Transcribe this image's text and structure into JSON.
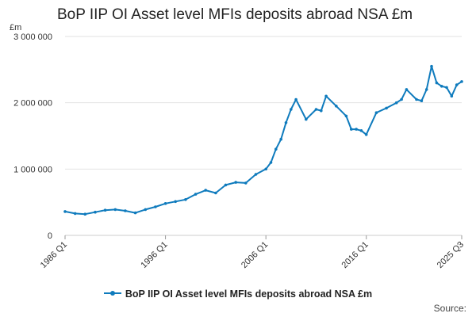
{
  "chart_data": {
    "type": "line",
    "title": "BoP IIP OI Asset level MFIs deposits abroad NSA £m",
    "ylabel": "£m",
    "ylim": [
      0,
      3000000
    ],
    "yticks": [
      0,
      1000000,
      2000000,
      3000000
    ],
    "ytick_labels": [
      "0",
      "1 000 000",
      "2 000 000",
      "3 000 000"
    ],
    "xtick_labels": [
      "1986 Q1",
      "1996 Q1",
      "2006 Q1",
      "2016 Q1",
      "2025 Q3"
    ],
    "grid": true,
    "legend_position": "bottom",
    "series": [
      {
        "name": "BoP IIP OI Asset level MFIs deposits abroad NSA £m",
        "color": "#0f7bbd",
        "x": [
          "1986 Q1",
          "1987 Q1",
          "1988 Q1",
          "1989 Q1",
          "1990 Q1",
          "1991 Q1",
          "1992 Q1",
          "1993 Q1",
          "1994 Q1",
          "1995 Q1",
          "1996 Q1",
          "1997 Q1",
          "1998 Q1",
          "1999 Q1",
          "2000 Q1",
          "2001 Q1",
          "2002 Q1",
          "2003 Q1",
          "2004 Q1",
          "2005 Q1",
          "2006 Q1",
          "2006 Q3",
          "2007 Q1",
          "2007 Q3",
          "2008 Q1",
          "2008 Q3",
          "2009 Q1",
          "2010 Q1",
          "2011 Q1",
          "2011 Q3",
          "2012 Q1",
          "2013 Q1",
          "2014 Q1",
          "2014 Q3",
          "2015 Q1",
          "2015 Q3",
          "2016 Q1",
          "2017 Q1",
          "2018 Q1",
          "2019 Q1",
          "2019 Q3",
          "2020 Q1",
          "2021 Q1",
          "2021 Q3",
          "2022 Q1",
          "2022 Q3",
          "2023 Q1",
          "2023 Q3",
          "2024 Q1",
          "2024 Q3",
          "2025 Q1",
          "2025 Q3"
        ],
        "values": [
          360000,
          330000,
          320000,
          350000,
          380000,
          390000,
          370000,
          340000,
          390000,
          430000,
          480000,
          510000,
          540000,
          620000,
          680000,
          640000,
          760000,
          800000,
          790000,
          920000,
          1000000,
          1100000,
          1300000,
          1450000,
          1700000,
          1900000,
          2050000,
          1750000,
          1900000,
          1880000,
          2100000,
          1950000,
          1800000,
          1600000,
          1600000,
          1580000,
          1520000,
          1850000,
          1920000,
          2000000,
          2050000,
          2200000,
          2050000,
          2030000,
          2200000,
          2550000,
          2300000,
          2250000,
          2230000,
          2100000,
          2270000,
          2320000
        ]
      }
    ]
  },
  "source_label": "Source:"
}
